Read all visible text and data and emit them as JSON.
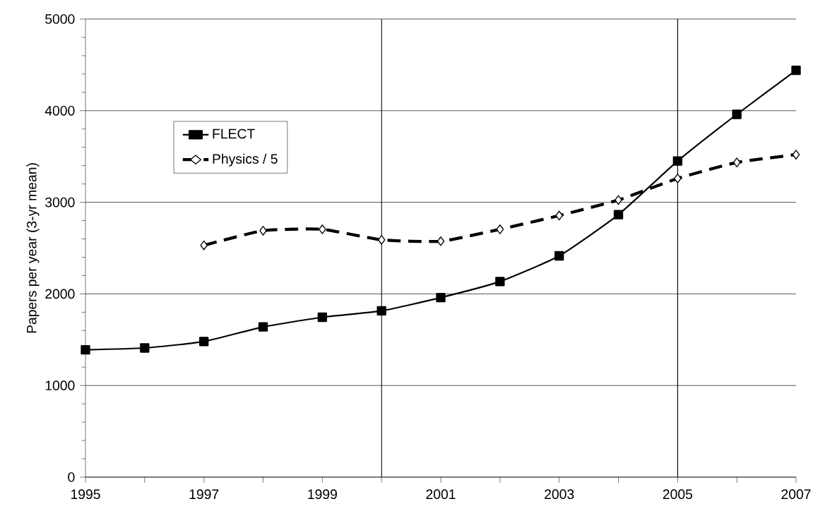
{
  "chart_data": {
    "type": "line",
    "ylabel": "Papers per year (3-yr mean)",
    "x": [
      1995,
      1996,
      1997,
      1998,
      1999,
      2000,
      2001,
      2002,
      2003,
      2004,
      2005,
      2006,
      2007
    ],
    "series": [
      {
        "name": "FLECT",
        "color": "#000000",
        "marker": "square",
        "line_style": "solid",
        "values": [
          1390,
          1410,
          1480,
          1640,
          1745,
          1815,
          1960,
          2135,
          2415,
          2865,
          3450,
          3960,
          4440
        ]
      },
      {
        "name": "Physics / 5",
        "color": "#000000",
        "marker": "diamond",
        "line_style": "dashed",
        "values": [
          null,
          null,
          2530,
          2690,
          2705,
          2590,
          2575,
          2705,
          2855,
          3025,
          3260,
          3435,
          3520
        ]
      }
    ],
    "xlim": [
      1995,
      2007
    ],
    "xticks": [
      1995,
      {
        "value": 1996,
        "label": null
      },
      1997,
      {
        "value": 1998,
        "label": null
      },
      1999,
      {
        "value": 2000,
        "label": null
      },
      2001,
      {
        "value": 2002,
        "label": null
      },
      2003,
      {
        "value": 2004,
        "label": null
      },
      2005,
      {
        "value": 2006,
        "label": null
      },
      2007
    ],
    "ylim": [
      0,
      5000
    ],
    "yticks": [
      0,
      1000,
      2000,
      3000,
      4000,
      5000
    ],
    "ref_lines": [
      {
        "axis": "x",
        "value": 2000,
        "color": "#000000"
      },
      {
        "axis": "x",
        "value": 2005,
        "color": "#000000"
      }
    ],
    "grid": "y",
    "legend": "top left"
  }
}
